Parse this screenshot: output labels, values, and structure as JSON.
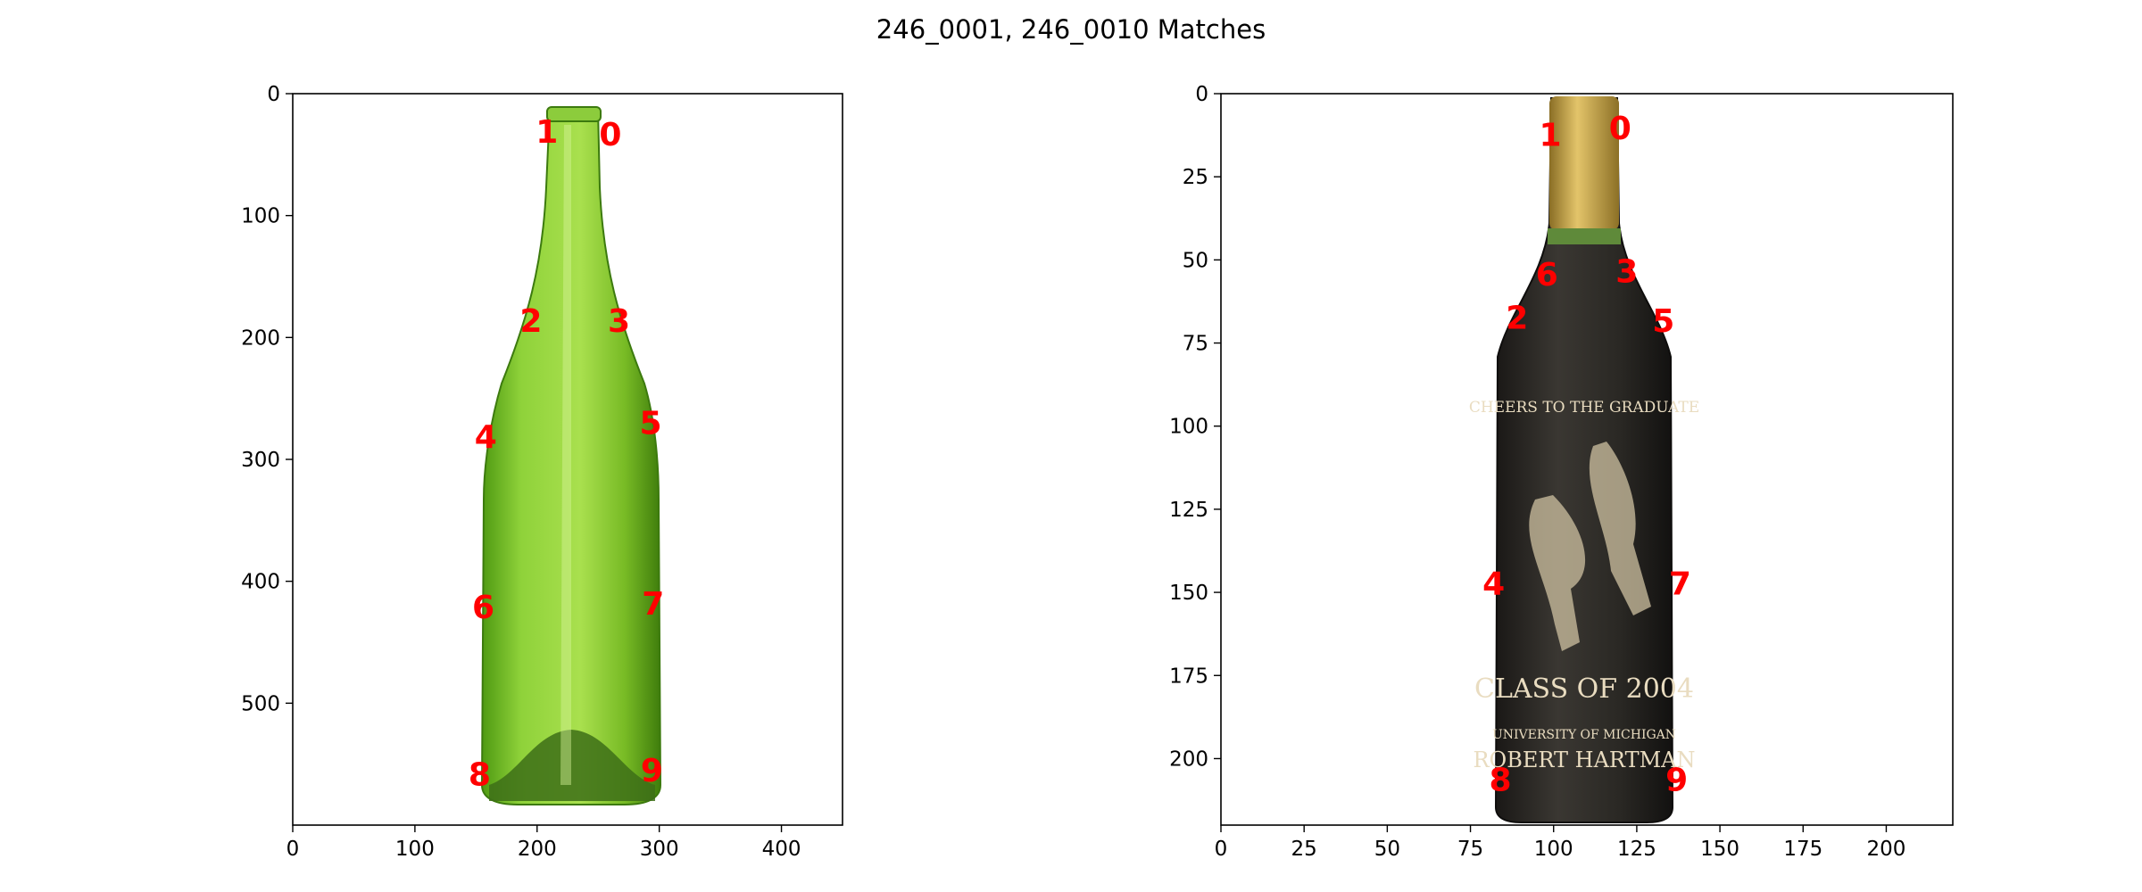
{
  "title": "246_0001, 246_0010 Matches",
  "colors": {
    "keypoint": "#ff0000",
    "left_bottle_glass": "#7cc22a",
    "left_bottle_dark": "#3d7a10",
    "right_bottle_body": "#2c2a26",
    "right_bottle_capsule": "#c9a646",
    "right_label_cream": "#e9dcc0"
  },
  "chart_data": [
    {
      "type": "scatter",
      "image_id": "246_0001",
      "xlim": [
        0,
        450
      ],
      "ylim": [
        600,
        0
      ],
      "xticks": [
        0,
        100,
        200,
        300,
        400
      ],
      "yticks": [
        0,
        100,
        200,
        300,
        400,
        500
      ],
      "points": [
        {
          "label": "0",
          "x": 260,
          "y": 35
        },
        {
          "label": "1",
          "x": 208,
          "y": 33
        },
        {
          "label": "2",
          "x": 195,
          "y": 188
        },
        {
          "label": "3",
          "x": 267,
          "y": 188
        },
        {
          "label": "4",
          "x": 158,
          "y": 283
        },
        {
          "label": "5",
          "x": 293,
          "y": 272
        },
        {
          "label": "6",
          "x": 156,
          "y": 423
        },
        {
          "label": "7",
          "x": 295,
          "y": 420
        },
        {
          "label": "8",
          "x": 153,
          "y": 560
        },
        {
          "label": "9",
          "x": 294,
          "y": 557
        }
      ]
    },
    {
      "type": "scatter",
      "image_id": "246_0010",
      "xlim": [
        0,
        220
      ],
      "ylim": [
        220,
        0
      ],
      "xticks": [
        0,
        25,
        50,
        75,
        100,
        125,
        150,
        175,
        200
      ],
      "yticks": [
        0,
        25,
        50,
        75,
        100,
        125,
        150,
        175,
        200
      ],
      "points": [
        {
          "label": "0",
          "x": 120,
          "y": 11
        },
        {
          "label": "1",
          "x": 99,
          "y": 13
        },
        {
          "label": "2",
          "x": 89,
          "y": 68
        },
        {
          "label": "3",
          "x": 122,
          "y": 54
        },
        {
          "label": "4",
          "x": 82,
          "y": 148
        },
        {
          "label": "5",
          "x": 133,
          "y": 69
        },
        {
          "label": "6",
          "x": 98,
          "y": 55
        },
        {
          "label": "7",
          "x": 138,
          "y": 148
        },
        {
          "label": "8",
          "x": 84,
          "y": 207
        },
        {
          "label": "9",
          "x": 137,
          "y": 207
        }
      ]
    }
  ]
}
